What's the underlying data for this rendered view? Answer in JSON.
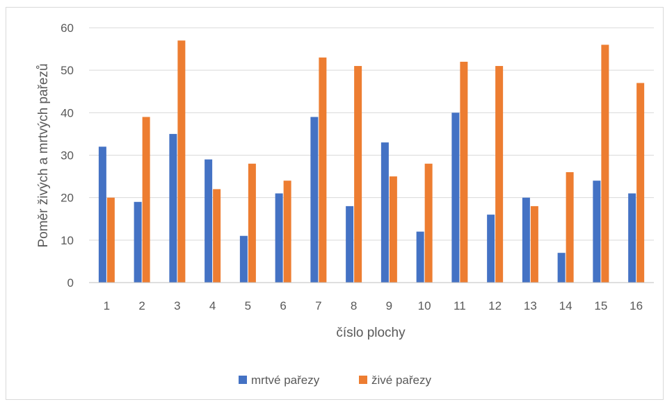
{
  "chart_data": {
    "type": "bar",
    "title": "",
    "xlabel": "číslo plochy",
    "ylabel": "Poměr živých a mrtvých pařezů",
    "ylim": [
      0,
      60
    ],
    "yticks": [
      0,
      10,
      20,
      30,
      40,
      50,
      60
    ],
    "grid": true,
    "legend_position": "bottom",
    "categories": [
      "1",
      "2",
      "3",
      "4",
      "5",
      "6",
      "7",
      "8",
      "9",
      "10",
      "11",
      "12",
      "13",
      "14",
      "15",
      "16"
    ],
    "series": [
      {
        "name": "mrtvé pařezy",
        "color": "#4472C4",
        "values": [
          32,
          19,
          35,
          29,
          11,
          21,
          39,
          18,
          33,
          12,
          40,
          16,
          20,
          7,
          24,
          21
        ]
      },
      {
        "name": "živé pařezy",
        "color": "#ED7D31",
        "values": [
          20,
          39,
          57,
          22,
          28,
          24,
          53,
          51,
          25,
          28,
          52,
          51,
          18,
          26,
          56,
          47
        ]
      }
    ]
  }
}
